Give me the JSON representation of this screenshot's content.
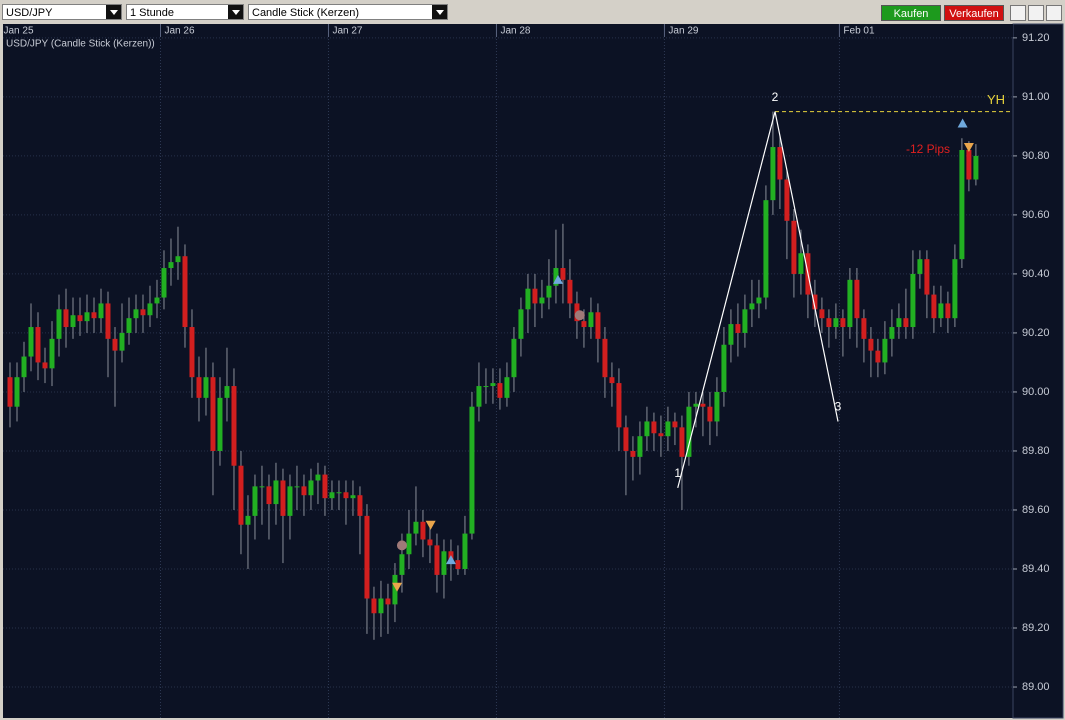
{
  "toolbar": {
    "symbol": "USD/JPY",
    "interval": "1 Stunde",
    "chart_style": "Candle Stick (Kerzen)",
    "buy": "Kaufen",
    "sell": "Verkaufen"
  },
  "chart_data": {
    "type": "candlestick",
    "title": "USD/JPY (Candle Stick (Kerzen))",
    "open": [
      90.05,
      89.95,
      90.05,
      90.12,
      90.22,
      90.1,
      90.08,
      90.18,
      90.28,
      90.22,
      90.26,
      90.24,
      90.27,
      90.25,
      90.3,
      90.18,
      90.14,
      90.2,
      90.25,
      90.28,
      90.26,
      90.3,
      90.32,
      90.42,
      90.44,
      90.46,
      90.22,
      90.05,
      89.98,
      90.05,
      89.8,
      89.98,
      90.02,
      89.75,
      89.55,
      89.58,
      89.68,
      89.68,
      89.62,
      89.7,
      89.58,
      89.68,
      89.68,
      89.65,
      89.7,
      89.72,
      89.64,
      89.66,
      89.66,
      89.64,
      89.65,
      89.58,
      89.3,
      89.25,
      89.3,
      89.28,
      89.38,
      89.45,
      89.52,
      89.56,
      89.5,
      89.48,
      89.38,
      89.46,
      89.43,
      89.4,
      89.52,
      89.95,
      90.02,
      90.02,
      90.03,
      89.98,
      90.05,
      90.18,
      90.28,
      90.35,
      90.3,
      90.32,
      90.36,
      90.42,
      90.38,
      90.3,
      90.24,
      90.22,
      90.27,
      90.18,
      90.05,
      90.03,
      89.88,
      89.8,
      89.78,
      89.85,
      89.9,
      89.86,
      89.85,
      89.9,
      89.88,
      89.78,
      89.95,
      89.96,
      89.95,
      89.9,
      90.0,
      90.16,
      90.23,
      90.2,
      90.28,
      90.3,
      90.32,
      90.65,
      90.83,
      90.72,
      90.58,
      90.4,
      90.47,
      90.33,
      90.28,
      90.25,
      90.22,
      90.25,
      90.22,
      90.38,
      90.25,
      90.18,
      90.14,
      90.1,
      90.18,
      90.22,
      90.25,
      90.22,
      90.4,
      90.45,
      90.33,
      90.25,
      90.3,
      90.25,
      90.45,
      90.82,
      90.72
    ],
    "high": [
      90.1,
      90.1,
      90.17,
      90.3,
      90.27,
      90.15,
      90.24,
      90.33,
      90.35,
      90.32,
      90.32,
      90.33,
      90.32,
      90.35,
      90.34,
      90.22,
      90.3,
      90.32,
      90.33,
      90.33,
      90.36,
      90.38,
      90.48,
      90.52,
      90.56,
      90.5,
      90.28,
      90.12,
      90.15,
      90.1,
      90.05,
      90.15,
      90.08,
      89.8,
      89.65,
      89.72,
      89.75,
      89.72,
      89.76,
      89.74,
      89.72,
      89.75,
      89.72,
      89.74,
      89.76,
      89.75,
      89.7,
      89.7,
      89.7,
      89.7,
      89.68,
      89.62,
      89.34,
      89.36,
      89.35,
      89.42,
      89.52,
      89.6,
      89.68,
      89.6,
      89.55,
      89.52,
      89.5,
      89.5,
      89.48,
      89.58,
      90.0,
      90.1,
      90.08,
      90.08,
      90.08,
      90.1,
      90.22,
      90.32,
      90.4,
      90.4,
      90.38,
      90.45,
      90.55,
      90.57,
      90.45,
      90.34,
      90.28,
      90.32,
      90.3,
      90.22,
      90.1,
      90.08,
      89.92,
      89.85,
      89.9,
      89.95,
      89.93,
      89.92,
      89.95,
      89.93,
      89.92,
      90.0,
      90.0,
      90.0,
      90.0,
      90.05,
      90.22,
      90.28,
      90.3,
      90.33,
      90.38,
      90.38,
      90.7,
      90.95,
      90.87,
      90.75,
      90.62,
      90.55,
      90.5,
      90.38,
      90.32,
      90.28,
      90.3,
      90.28,
      90.42,
      90.42,
      90.28,
      90.22,
      90.18,
      90.24,
      90.28,
      90.3,
      90.35,
      90.48,
      90.48,
      90.48,
      90.36,
      90.36,
      90.34,
      90.5,
      90.86,
      90.85,
      90.84
    ],
    "low": [
      89.88,
      89.9,
      90.0,
      90.07,
      90.04,
      90.03,
      90.02,
      90.12,
      90.15,
      90.18,
      90.19,
      90.2,
      90.2,
      90.2,
      90.05,
      89.95,
      90.1,
      90.16,
      90.2,
      90.2,
      90.22,
      90.25,
      90.28,
      90.36,
      90.38,
      90.15,
      89.98,
      89.9,
      89.92,
      89.65,
      89.75,
      89.9,
      89.6,
      89.45,
      89.4,
      89.5,
      89.55,
      89.5,
      89.55,
      89.42,
      89.5,
      89.6,
      89.58,
      89.6,
      89.62,
      89.58,
      89.6,
      89.6,
      89.55,
      89.58,
      89.45,
      89.18,
      89.16,
      89.17,
      89.18,
      89.22,
      89.32,
      89.4,
      89.48,
      89.44,
      89.42,
      89.32,
      89.3,
      89.36,
      89.38,
      89.38,
      89.5,
      89.9,
      89.96,
      89.96,
      89.94,
      89.95,
      90.0,
      90.12,
      90.2,
      90.22,
      90.25,
      90.28,
      90.3,
      90.3,
      90.25,
      90.18,
      90.15,
      90.18,
      90.1,
      89.98,
      89.95,
      89.8,
      89.65,
      89.7,
      89.72,
      89.8,
      89.8,
      89.78,
      89.8,
      89.82,
      89.6,
      89.75,
      89.88,
      89.85,
      89.82,
      89.85,
      89.95,
      90.1,
      90.12,
      90.15,
      90.22,
      90.25,
      90.28,
      90.6,
      90.62,
      90.45,
      90.32,
      90.33,
      90.25,
      90.22,
      90.2,
      90.15,
      90.18,
      90.12,
      90.18,
      90.15,
      90.1,
      90.05,
      90.05,
      90.06,
      90.12,
      90.18,
      90.18,
      90.18,
      90.35,
      90.25,
      90.2,
      90.22,
      90.2,
      90.22,
      90.42,
      90.68,
      90.7
    ],
    "close": [
      89.95,
      90.05,
      90.12,
      90.22,
      90.1,
      90.08,
      90.18,
      90.28,
      90.22,
      90.26,
      90.24,
      90.27,
      90.25,
      90.3,
      90.18,
      90.14,
      90.2,
      90.25,
      90.28,
      90.26,
      90.3,
      90.32,
      90.42,
      90.44,
      90.46,
      90.22,
      90.05,
      89.98,
      90.05,
      89.8,
      89.98,
      90.02,
      89.75,
      89.55,
      89.58,
      89.68,
      89.68,
      89.62,
      89.7,
      89.58,
      89.68,
      89.68,
      89.65,
      89.7,
      89.72,
      89.64,
      89.66,
      89.66,
      89.64,
      89.65,
      89.58,
      89.3,
      89.25,
      89.3,
      89.28,
      89.38,
      89.45,
      89.52,
      89.56,
      89.5,
      89.48,
      89.38,
      89.46,
      89.43,
      89.4,
      89.52,
      89.95,
      90.02,
      90.02,
      90.03,
      89.98,
      90.05,
      90.18,
      90.28,
      90.35,
      90.3,
      90.32,
      90.36,
      90.42,
      90.38,
      90.3,
      90.24,
      90.22,
      90.27,
      90.18,
      90.05,
      90.03,
      89.88,
      89.8,
      89.78,
      89.85,
      89.9,
      89.86,
      89.85,
      89.9,
      89.88,
      89.78,
      89.95,
      89.96,
      89.95,
      89.9,
      90.0,
      90.16,
      90.23,
      90.2,
      90.28,
      90.3,
      90.32,
      90.65,
      90.83,
      90.72,
      90.58,
      90.4,
      90.47,
      90.33,
      90.28,
      90.25,
      90.22,
      90.25,
      90.22,
      90.38,
      90.25,
      90.18,
      90.14,
      90.1,
      90.18,
      90.22,
      90.25,
      90.22,
      90.4,
      90.45,
      90.33,
      90.25,
      90.3,
      90.25,
      90.45,
      90.82,
      90.72,
      90.8
    ],
    "up_color": "#22b022",
    "down_color": "#d21f1f",
    "wick_color": "#8a8f99",
    "xlim": [
      -1,
      143.3
    ],
    "xticks": [
      {
        "value": -1.5,
        "label": "Jan 25"
      },
      {
        "value": 21.5,
        "label": "Jan 26"
      },
      {
        "value": 45.5,
        "label": "Jan 27"
      },
      {
        "value": 69.5,
        "label": "Jan 28"
      },
      {
        "value": 93.5,
        "label": "Jan 29"
      },
      {
        "value": 118.5,
        "label": "Feb 01"
      }
    ],
    "ylim": [
      88.895,
      91.247
    ],
    "yticks": [
      {
        "value": 89,
        "label": "89.00"
      },
      {
        "value": 89.2,
        "label": "89.20"
      },
      {
        "value": 89.4,
        "label": "89.40"
      },
      {
        "value": 89.6,
        "label": "89.60"
      },
      {
        "value": 89.8,
        "label": "89.80"
      },
      {
        "value": 90,
        "label": "90.00"
      },
      {
        "value": 90.2,
        "label": "90.20"
      },
      {
        "value": 90.4,
        "label": "90.40"
      },
      {
        "value": 90.6,
        "label": "90.60"
      },
      {
        "value": 90.8,
        "label": "90.80"
      },
      {
        "value": 91,
        "label": "91.00"
      },
      {
        "value": 91.2,
        "label": "91.20"
      }
    ],
    "grid": true,
    "pattern": [
      {
        "x": 95.4,
        "y": 89.675,
        "label": "1"
      },
      {
        "x": 109.3,
        "y": 90.95,
        "label": "2"
      },
      {
        "x": 118.3,
        "y": 89.9,
        "label": "3"
      }
    ],
    "level": {
      "label": "YH",
      "value": 90.95,
      "from": 109.3,
      "color": "#e6d23c"
    },
    "annotation": {
      "text": "-12 Pips",
      "x": 134.3,
      "y": 90.82,
      "color": "#e02020"
    },
    "markers": [
      {
        "shape": "up",
        "x": 78.3,
        "y": 90.38,
        "color": "#6fa8dc"
      },
      {
        "shape": "circle",
        "x": 81.4,
        "y": 90.26,
        "color": "#a07a78"
      },
      {
        "shape": "down",
        "x": 55.3,
        "y": 89.34,
        "color": "#eaa64c"
      },
      {
        "shape": "circle",
        "x": 56,
        "y": 89.48,
        "color": "#a07a78"
      },
      {
        "shape": "down",
        "x": 60.1,
        "y": 89.55,
        "color": "#eaa64c"
      },
      {
        "shape": "up",
        "x": 63,
        "y": 89.43,
        "color": "#6fa8dc"
      },
      {
        "shape": "up",
        "x": 136.1,
        "y": 90.91,
        "color": "#6fa8dc"
      },
      {
        "shape": "down",
        "x": 137,
        "y": 90.83,
        "color": "#eaa64c"
      }
    ]
  }
}
